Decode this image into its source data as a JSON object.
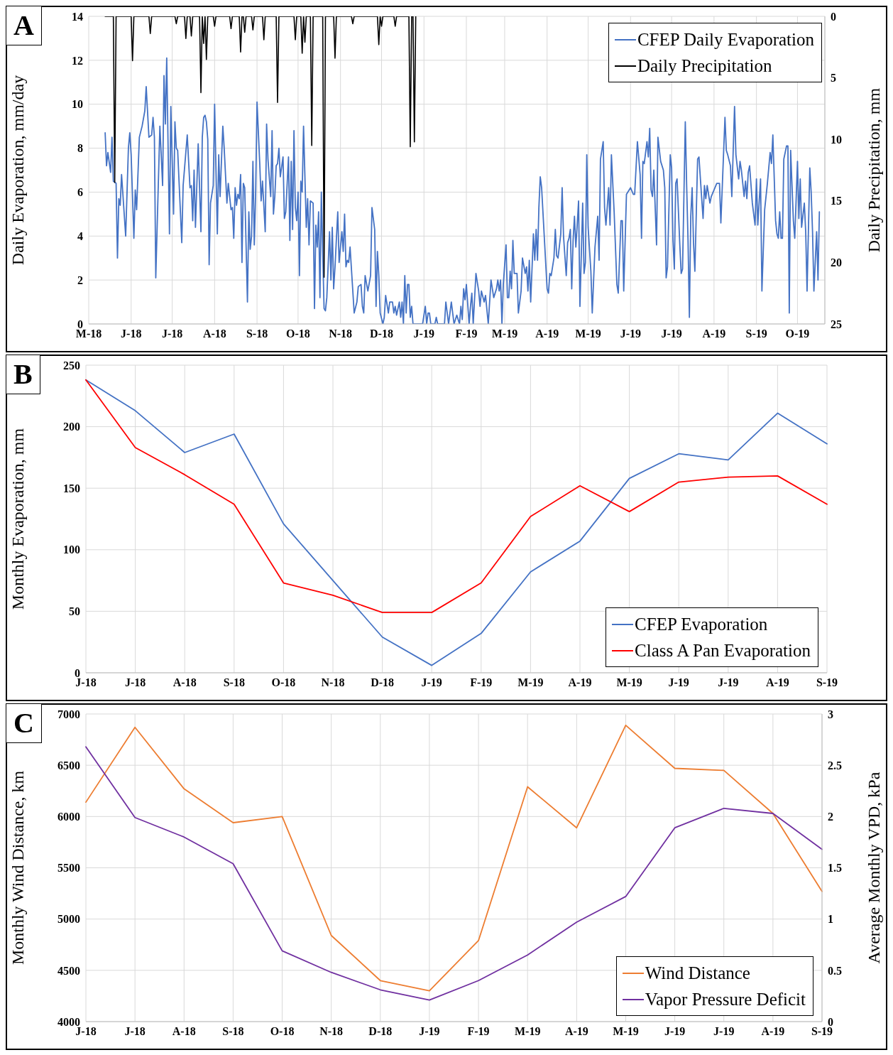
{
  "chart_data": [
    {
      "type": "line",
      "title": "A",
      "ylabel": "Daily Evaporation, mm/day",
      "y2label": "Daily Precipitation, mm",
      "xlim": [
        "2018-05-01",
        "2019-10-21"
      ],
      "xticks": [
        {
          "value": "2018-05-01",
          "label": "M-18"
        },
        {
          "value": "2018-06-01",
          "label": "J-18"
        },
        {
          "value": "2018-07-01",
          "label": "J-18"
        },
        {
          "value": "2018-08-01",
          "label": "A-18"
        },
        {
          "value": "2018-09-01",
          "label": "S-18"
        },
        {
          "value": "2018-10-01",
          "label": "O-18"
        },
        {
          "value": "2018-11-01",
          "label": "N-18"
        },
        {
          "value": "2018-12-01",
          "label": "D-18"
        },
        {
          "value": "2019-01-01",
          "label": "J-19"
        },
        {
          "value": "2019-02-01",
          "label": "F-19"
        },
        {
          "value": "2019-03-01",
          "label": "M-19"
        },
        {
          "value": "2019-04-01",
          "label": "A-19"
        },
        {
          "value": "2019-05-01",
          "label": "M-19"
        },
        {
          "value": "2019-06-01",
          "label": "J-19"
        },
        {
          "value": "2019-07-01",
          "label": "J-19"
        },
        {
          "value": "2019-08-01",
          "label": "A-19"
        },
        {
          "value": "2019-09-01",
          "label": "S-19"
        },
        {
          "value": "2019-10-01",
          "label": "O-19"
        }
      ],
      "ylim": [
        0,
        14
      ],
      "yticks": [
        0,
        2,
        4,
        6,
        8,
        10,
        12,
        14
      ],
      "y2lim": [
        25,
        0
      ],
      "y2ticks": [
        0,
        5,
        10,
        15,
        20,
        25
      ],
      "grid": true,
      "legend": "top right",
      "series": [
        {
          "name": "CFEP Daily Evaporation",
          "color": "#4472c4",
          "x": [
            "2018-05-13",
            "2018-05-14",
            "2018-05-15",
            "2018-05-17",
            "2018-05-18",
            "2018-05-19",
            "2018-05-21",
            "2018-05-22",
            "2018-05-23",
            "2018-05-24",
            "2018-05-25",
            "2018-05-28",
            "2018-05-30",
            "2018-05-31",
            "2018-06-01",
            "2018-06-03",
            "2018-06-04",
            "2018-06-05",
            "2018-06-07",
            "2018-06-09",
            "2018-06-11",
            "2018-06-12",
            "2018-06-14",
            "2018-06-16",
            "2018-06-17",
            "2018-06-18",
            "2018-06-19",
            "2018-06-22",
            "2018-06-24",
            "2018-06-25",
            "2018-06-26",
            "2018-06-27",
            "2018-06-29",
            "2018-06-30",
            "2018-07-02",
            "2018-07-03",
            "2018-07-04",
            "2018-07-05",
            "2018-07-08",
            "2018-07-09",
            "2018-07-12",
            "2018-07-14",
            "2018-07-15",
            "2018-07-16",
            "2018-07-17",
            "2018-07-18",
            "2018-07-20",
            "2018-07-22",
            "2018-07-23",
            "2018-07-24",
            "2018-07-25",
            "2018-07-26",
            "2018-07-27",
            "2018-07-28",
            "2018-07-29",
            "2018-07-31",
            "2018-08-01",
            "2018-08-03",
            "2018-08-04",
            "2018-08-05",
            "2018-08-07",
            "2018-08-08",
            "2018-08-10",
            "2018-08-11",
            "2018-08-13",
            "2018-08-14",
            "2018-08-15",
            "2018-08-16",
            "2018-08-17",
            "2018-08-18",
            "2018-08-19",
            "2018-08-20",
            "2018-08-21",
            "2018-08-22",
            "2018-08-23",
            "2018-08-25",
            "2018-08-26",
            "2018-08-27",
            "2018-08-28",
            "2018-08-29",
            "2018-08-30",
            "2018-08-31",
            "2018-09-01",
            "2018-09-03",
            "2018-09-04",
            "2018-09-05",
            "2018-09-07",
            "2018-09-08",
            "2018-09-09",
            "2018-09-11",
            "2018-09-12",
            "2018-09-13",
            "2018-09-14",
            "2018-09-15",
            "2018-09-16",
            "2018-09-17",
            "2018-09-18",
            "2018-09-20",
            "2018-09-21",
            "2018-09-22",
            "2018-09-24",
            "2018-09-25",
            "2018-09-26",
            "2018-09-27",
            "2018-09-28",
            "2018-09-29",
            "2018-09-30",
            "2018-10-01",
            "2018-10-02",
            "2018-10-03",
            "2018-10-04",
            "2018-10-05",
            "2018-10-07",
            "2018-10-08",
            "2018-10-09",
            "2018-10-10",
            "2018-10-12",
            "2018-10-13",
            "2018-10-14",
            "2018-10-15",
            "2018-10-16",
            "2018-10-17",
            "2018-10-18",
            "2018-10-20",
            "2018-10-21",
            "2018-10-22",
            "2018-10-24",
            "2018-10-25",
            "2018-10-26",
            "2018-10-27",
            "2018-10-28",
            "2018-10-30",
            "2018-10-31",
            "2018-11-02",
            "2018-11-03",
            "2018-11-04",
            "2018-11-05",
            "2018-11-06",
            "2018-11-07",
            "2018-11-08",
            "2018-11-11",
            "2018-11-13",
            "2018-11-14",
            "2018-11-16",
            "2018-11-17",
            "2018-11-18",
            "2018-11-19",
            "2018-11-21",
            "2018-11-23",
            "2018-11-24",
            "2018-11-26",
            "2018-11-27",
            "2018-11-28",
            "2018-11-29",
            "2018-11-30",
            "2018-12-02",
            "2018-12-03",
            "2018-12-04",
            "2018-12-06",
            "2018-12-07",
            "2018-12-09",
            "2018-12-10",
            "2018-12-11",
            "2018-12-12",
            "2018-12-14",
            "2018-12-15",
            "2018-12-16",
            "2018-12-17",
            "2018-12-18",
            "2018-12-19",
            "2018-12-20",
            "2018-12-21",
            "2018-12-22",
            "2018-12-23",
            "2018-12-24",
            "2018-12-31",
            "2019-01-02",
            "2019-01-03",
            "2019-01-04",
            "2019-01-05",
            "2019-01-06",
            "2019-01-09",
            "2019-01-10",
            "2019-01-11",
            "2019-01-16",
            "2019-01-17",
            "2019-01-19",
            "2019-01-21",
            "2019-01-23",
            "2019-01-25",
            "2019-01-27",
            "2019-01-28",
            "2019-01-29",
            "2019-01-30",
            "2019-01-31",
            "2019-02-01",
            "2019-02-03",
            "2019-02-04",
            "2019-02-05",
            "2019-02-06",
            "2019-02-08",
            "2019-02-10",
            "2019-02-11",
            "2019-02-12",
            "2019-02-14",
            "2019-02-15",
            "2019-02-17",
            "2019-02-19",
            "2019-02-21",
            "2019-02-23",
            "2019-02-24",
            "2019-02-25",
            "2019-02-26",
            "2019-02-27",
            "2019-02-28",
            "2019-03-02",
            "2019-03-03",
            "2019-03-04",
            "2019-03-05",
            "2019-03-06",
            "2019-03-07",
            "2019-03-08",
            "2019-03-10",
            "2019-03-11",
            "2019-03-13",
            "2019-03-14",
            "2019-03-16",
            "2019-03-17",
            "2019-03-18",
            "2019-03-19",
            "2019-03-20",
            "2019-03-22",
            "2019-03-23",
            "2019-03-24",
            "2019-03-25",
            "2019-03-26",
            "2019-03-27",
            "2019-03-28",
            "2019-04-01",
            "2019-04-02",
            "2019-04-03",
            "2019-04-04",
            "2019-04-06",
            "2019-04-07",
            "2019-04-08",
            "2019-04-09",
            "2019-04-11",
            "2019-04-12",
            "2019-04-13",
            "2019-04-15",
            "2019-04-16",
            "2019-04-17",
            "2019-04-18",
            "2019-04-19",
            "2019-04-20",
            "2019-04-21",
            "2019-04-22",
            "2019-04-23",
            "2019-04-24",
            "2019-04-25",
            "2019-04-27",
            "2019-04-28",
            "2019-04-29",
            "2019-04-30",
            "2019-05-01",
            "2019-05-03",
            "2019-05-04",
            "2019-05-06",
            "2019-05-08",
            "2019-05-09",
            "2019-05-10",
            "2019-05-12",
            "2019-05-13",
            "2019-05-14",
            "2019-05-16",
            "2019-05-17",
            "2019-05-18",
            "2019-05-20",
            "2019-05-22",
            "2019-05-23",
            "2019-05-25",
            "2019-05-26",
            "2019-05-27",
            "2019-05-29",
            "2019-06-01",
            "2019-06-03",
            "2019-06-04",
            "2019-06-06",
            "2019-06-08",
            "2019-06-09",
            "2019-06-10",
            "2019-06-11",
            "2019-06-13",
            "2019-06-14",
            "2019-06-15",
            "2019-06-16",
            "2019-06-17",
            "2019-06-18",
            "2019-06-20",
            "2019-06-21",
            "2019-06-23",
            "2019-06-25",
            "2019-06-26",
            "2019-06-27",
            "2019-06-28",
            "2019-06-30",
            "2019-07-01",
            "2019-07-02",
            "2019-07-03",
            "2019-07-04",
            "2019-07-05",
            "2019-07-07",
            "2019-07-08",
            "2019-07-09",
            "2019-07-11",
            "2019-07-12",
            "2019-07-13",
            "2019-07-14",
            "2019-07-15",
            "2019-07-16",
            "2019-07-17",
            "2019-07-18",
            "2019-07-20",
            "2019-07-21",
            "2019-07-23",
            "2019-07-24",
            "2019-07-25",
            "2019-07-26",
            "2019-07-27",
            "2019-07-29",
            "2019-07-30",
            "2019-08-03",
            "2019-08-05",
            "2019-08-06",
            "2019-08-09",
            "2019-08-10",
            "2019-08-11",
            "2019-08-13",
            "2019-08-14",
            "2019-08-16",
            "2019-08-17",
            "2019-08-19",
            "2019-08-20",
            "2019-08-21",
            "2019-08-23",
            "2019-08-24",
            "2019-08-25",
            "2019-08-26",
            "2019-08-27",
            "2019-08-29",
            "2019-08-31",
            "2019-09-01",
            "2019-09-02",
            "2019-09-04",
            "2019-09-05",
            "2019-09-07",
            "2019-09-09",
            "2019-09-11",
            "2019-09-12",
            "2019-09-13",
            "2019-09-15",
            "2019-09-16",
            "2019-09-17",
            "2019-09-18",
            "2019-09-19",
            "2019-09-20",
            "2019-09-21",
            "2019-09-23",
            "2019-09-24",
            "2019-09-25",
            "2019-09-26",
            "2019-09-28",
            "2019-09-29",
            "2019-10-01",
            "2019-10-02",
            "2019-10-03",
            "2019-10-04",
            "2019-10-06",
            "2019-10-07",
            "2019-10-08",
            "2019-10-10",
            "2019-10-11",
            "2019-10-12",
            "2019-10-13",
            "2019-10-15",
            "2019-10-16",
            "2019-10-17"
          ],
          "values": [
            8.7,
            7.2,
            7.8,
            6.9,
            8.5,
            6.5,
            6.4,
            3.0,
            5.7,
            5.4,
            6.8,
            4.0,
            8.0,
            8.7,
            7.7,
            3.9,
            6.1,
            5.2,
            8.5,
            9.0,
            9.7,
            10.8,
            8.5,
            8.6,
            9.4,
            8.5,
            2.1,
            9.0,
            6.3,
            11.3,
            9.1,
            12.1,
            4.1,
            9.9,
            5.0,
            9.2,
            8.0,
            7.9,
            3.7,
            6.3,
            8.6,
            6.2,
            6.3,
            4.7,
            7.0,
            4.4,
            8.2,
            4.2,
            8.5,
            9.4,
            9.5,
            9.2,
            8.4,
            2.7,
            5.5,
            6.3,
            10.0,
            4.1,
            7.7,
            5.8,
            9.0,
            8.0,
            5.5,
            6.4,
            5.2,
            5.3,
            3.9,
            6.2,
            5.4,
            5.9,
            5.7,
            6.8,
            2.8,
            6.4,
            6.2,
            1.0,
            5.1,
            3.4,
            4.0,
            7.4,
            3.6,
            6.0,
            10.1,
            7.3,
            5.6,
            6.5,
            4.2,
            9.1,
            7.5,
            5.8,
            8.8,
            5.0,
            5.8,
            7.2,
            7.3,
            8.0,
            6.7,
            7.6,
            4.8,
            5.1,
            7.6,
            3.8,
            7.4,
            4.3,
            8.8,
            5.3,
            4.7,
            6.0,
            2.2,
            6.5,
            6.0,
            9.0,
            4.4,
            5.7,
            3.6,
            5.6,
            5.5,
            0.7,
            4.5,
            3.5,
            5.1,
            1.2,
            6.0,
            0.7,
            0.6,
            1.2,
            4.2,
            2.0,
            4.4,
            1.6,
            2.6,
            5.1,
            2.8,
            4.2,
            3.3,
            5.0,
            2.6,
            2.9,
            2.8,
            3.5,
            0.5,
            1.0,
            1.7,
            1.8,
            0.8,
            0.5,
            2.2,
            1.5,
            2.2,
            5.3,
            4.3,
            0.8,
            3.3,
            2.2,
            0.5,
            0.0,
            0.3,
            1.3,
            0.5,
            1.0,
            1.0,
            0.5,
            0.8,
            0.4,
            1.0,
            0.3,
            1.0,
            0.0,
            2.2,
            0.5,
            1.8,
            1.8,
            0.3,
            0.8,
            0.0,
            0.0,
            0.8,
            0.0,
            0.5,
            0.5,
            0.0,
            0.0,
            0.3,
            0.0,
            0.0,
            1.0,
            0.0,
            1.0,
            0.0,
            0.4,
            0.0,
            0.8,
            0.2,
            1.6,
            1.1,
            1.8,
            0.0,
            0.8,
            1.4,
            0.0,
            2.3,
            1.5,
            0.8,
            1.5,
            1.0,
            1.3,
            0.0,
            2.0,
            1.2,
            1.6,
            2.0,
            1.5,
            2.0,
            0.0,
            1.8,
            3.6,
            1.2,
            1.2,
            2.4,
            1.6,
            3.8,
            2.3,
            2.3,
            0.5,
            1.5,
            3.0,
            2.3,
            2.6,
            1.5,
            2.9,
            1.0,
            4.1,
            2.9,
            4.3,
            2.9,
            5.3,
            6.7,
            6.2,
            1.6,
            1.4,
            2.3,
            2.2,
            3.0,
            4.3,
            3.1,
            3.0,
            4.1,
            6.2,
            4.0,
            2.2,
            3.7,
            3.9,
            4.3,
            1.6,
            3.8,
            4.9,
            3.5,
            4.5,
            5.6,
            0.8,
            5.5,
            2.3,
            2.8,
            7.7,
            4.4,
            2.4,
            0.5,
            3.5,
            4.9,
            2.9,
            7.5,
            8.3,
            5.3,
            4.5,
            6.2,
            4.5,
            7.7,
            5.1,
            1.8,
            1.4,
            4.7,
            4.7,
            1.5,
            5.9,
            6.2,
            5.9,
            5.9,
            8.3,
            6.8,
            3.9,
            7.4,
            7.3,
            8.3,
            7.6,
            8.9,
            6.1,
            5.8,
            7.0,
            3.6,
            8.5,
            7.4,
            7.0,
            6.2,
            2.1,
            2.6,
            7.7,
            7.1,
            3.8,
            2.5,
            6.4,
            6.6,
            3.6,
            2.3,
            2.5,
            9.2,
            6.3,
            3.8,
            0.3,
            4.9,
            6.2,
            3.7,
            2.4,
            7.5,
            7.6,
            5.7,
            4.8,
            6.3,
            5.7,
            6.3,
            5.5,
            5.8,
            6.4,
            6.4,
            4.6,
            9.4,
            7.9,
            7.7,
            7.2,
            5.8,
            9.9,
            7.7,
            6.6,
            7.4,
            7.0,
            5.8,
            6.5,
            5.7,
            6.9,
            7.2,
            5.5,
            4.5,
            6.6,
            4.5,
            6.6,
            1.5,
            5.2,
            6.4,
            7.8,
            7.3,
            8.6,
            4.7,
            4.1,
            3.9,
            5.1,
            3.9,
            3.9,
            7.5,
            8.1,
            8.1,
            0.5,
            7.9,
            4.7,
            3.9,
            7.4,
            4.8,
            6.6,
            4.4,
            5.5,
            4.2,
            1.5,
            7.1,
            6.0,
            4.2,
            1.5,
            4.2,
            2.0,
            5.1
          ]
        },
        {
          "name": "Daily Precipitation",
          "color": "#000000",
          "axis": "y2",
          "x": [
            "2018-05-13",
            "2018-05-19",
            "2018-05-20",
            "2018-05-21",
            "2018-06-01",
            "2018-06-02",
            "2018-06-03",
            "2018-06-14",
            "2018-06-15",
            "2018-06-16",
            "2018-07-03",
            "2018-07-04",
            "2018-07-05",
            "2018-07-10",
            "2018-07-11",
            "2018-07-12",
            "2018-07-14",
            "2018-07-15",
            "2018-07-16",
            "2018-07-21",
            "2018-07-22",
            "2018-07-23",
            "2018-07-24",
            "2018-07-25",
            "2018-07-26",
            "2018-07-27",
            "2018-07-31",
            "2018-08-01",
            "2018-08-02",
            "2018-08-12",
            "2018-08-13",
            "2018-08-14",
            "2018-08-19",
            "2018-08-20",
            "2018-08-21",
            "2018-08-22",
            "2018-08-23",
            "2018-08-24",
            "2018-08-28",
            "2018-08-29",
            "2018-08-30",
            "2018-09-05",
            "2018-09-06",
            "2018-09-07",
            "2018-09-15",
            "2018-09-16",
            "2018-09-17",
            "2018-09-28",
            "2018-09-29",
            "2018-09-30",
            "2018-10-03",
            "2018-10-04",
            "2018-10-05",
            "2018-10-06",
            "2018-10-07",
            "2018-10-10",
            "2018-10-11",
            "2018-10-12",
            "2018-10-19",
            "2018-10-20",
            "2018-10-21",
            "2018-10-27",
            "2018-10-28",
            "2018-10-29",
            "2018-11-09",
            "2018-11-10",
            "2018-11-11",
            "2018-11-28",
            "2018-11-29",
            "2018-11-30",
            "2018-12-01",
            "2018-12-02",
            "2018-12-10",
            "2018-12-11",
            "2018-12-12",
            "2018-12-21",
            "2018-12-22",
            "2018-12-23",
            "2018-12-24",
            "2018-12-25",
            "2018-12-26"
          ],
          "values": [
            0,
            0,
            13.5,
            0,
            0,
            3.6,
            0,
            0,
            1.4,
            0,
            0,
            0.6,
            0,
            0,
            1.8,
            0,
            0,
            1.6,
            0,
            0,
            6.2,
            0,
            2.2,
            0,
            3.5,
            0,
            0,
            0.8,
            0,
            0,
            1.0,
            0,
            0,
            2.9,
            0,
            0,
            1.3,
            0,
            0,
            1.1,
            0,
            0,
            1.9,
            0,
            0,
            7.0,
            0,
            0,
            1.9,
            0,
            0,
            3.0,
            0,
            2.1,
            0,
            0,
            10.5,
            0,
            0,
            21.2,
            0,
            0,
            3.4,
            0,
            0,
            0.6,
            0,
            0,
            2.3,
            0,
            0.8,
            0,
            0,
            0.8,
            0,
            0,
            10.6,
            0,
            0,
            10.2,
            0
          ]
        }
      ]
    },
    {
      "type": "line",
      "title": "B",
      "ylabel": "Monthly Evaporation, mm",
      "categories": [
        "J-18",
        "J-18",
        "A-18",
        "S-18",
        "O-18",
        "N-18",
        "D-18",
        "J-19",
        "F-19",
        "M-19",
        "A-19",
        "M-19",
        "J-19",
        "J-19",
        "A-19",
        "S-19"
      ],
      "ylim": [
        0,
        250
      ],
      "yticks": [
        0,
        50,
        100,
        150,
        200,
        250
      ],
      "grid": true,
      "legend": "bottom right",
      "series": [
        {
          "name": "CFEP Evaporation",
          "color": "#4472c4",
          "values": [
            238,
            213,
            179,
            194,
            121,
            75,
            29,
            6,
            32,
            82,
            107,
            158,
            178,
            173,
            211,
            186
          ]
        },
        {
          "name": "Class A Pan Evaporation",
          "color": "#ff0000",
          "values": [
            238,
            183,
            161,
            137,
            73,
            63,
            49,
            49,
            73,
            127,
            152,
            131,
            155,
            159,
            160,
            137
          ]
        }
      ]
    },
    {
      "type": "line",
      "title": "C",
      "ylabel": "Monthly Wind Distance, km",
      "y2label": "Average Monthly VPD, kPa",
      "categories": [
        "J-18",
        "J-18",
        "A-18",
        "S-18",
        "O-18",
        "N-18",
        "D-18",
        "J-19",
        "F-19",
        "M-19",
        "A-19",
        "M-19",
        "J-19",
        "J-19",
        "A-19",
        "S-19"
      ],
      "ylim": [
        4000,
        7000
      ],
      "yticks": [
        4000,
        4500,
        5000,
        5500,
        6000,
        6500,
        7000
      ],
      "y2lim": [
        0,
        3
      ],
      "y2ticks": [
        0,
        0.5,
        1,
        1.5,
        2,
        2.5,
        3
      ],
      "grid": true,
      "legend": "bottom right",
      "series": [
        {
          "name": "Wind Distance",
          "color": "#ed7d31",
          "values": [
            6140,
            6870,
            6270,
            5940,
            6000,
            4840,
            4400,
            4300,
            4790,
            6290,
            5890,
            6890,
            6470,
            6450,
            6030,
            5270
          ]
        },
        {
          "name": "Vapor Pressure Deficit",
          "color": "#7030a0",
          "axis": "y2",
          "values": [
            2.68,
            1.99,
            1.8,
            1.54,
            0.69,
            0.48,
            0.31,
            0.21,
            0.4,
            0.65,
            0.97,
            1.22,
            1.89,
            2.08,
            2.03,
            1.68
          ]
        }
      ]
    }
  ]
}
